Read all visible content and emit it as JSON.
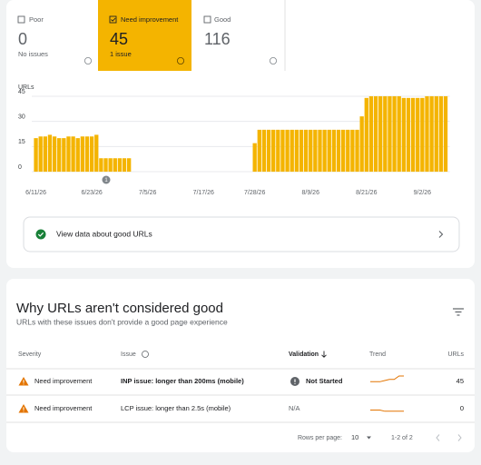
{
  "tabs": [
    {
      "label": "Poor",
      "count": 0,
      "note": "No issues"
    },
    {
      "label": "Need improvement",
      "count": 45,
      "note": "1 issue"
    },
    {
      "label": "Good",
      "count": 116
    }
  ],
  "chart_data": {
    "type": "bar",
    "y_label": "URLs",
    "color": "#f4b400",
    "categories": [
      "6/11/26",
      null,
      null,
      null,
      null,
      null,
      null,
      null,
      null,
      null,
      null,
      null,
      "6/23/26",
      null,
      null,
      null,
      null,
      null,
      null,
      null,
      null,
      null,
      null,
      null,
      "7/5/26",
      null,
      null,
      null,
      null,
      null,
      null,
      null,
      null,
      null,
      null,
      null,
      "7/17/26",
      null,
      null,
      null,
      null,
      null,
      null,
      null,
      null,
      null,
      null,
      "7/28/26",
      null,
      null,
      null,
      null,
      null,
      null,
      null,
      null,
      null,
      null,
      null,
      "8/9/26",
      null,
      null,
      null,
      null,
      null,
      null,
      null,
      null,
      null,
      null,
      null,
      "8/21/26",
      null,
      null,
      null,
      null,
      null,
      null,
      null,
      null,
      null,
      null,
      null,
      "9/2/26",
      null,
      null,
      null,
      null,
      null
    ],
    "values": [
      20,
      21,
      21,
      22,
      21,
      20,
      20,
      21,
      21,
      20,
      21,
      21,
      21,
      22,
      8,
      8,
      8,
      8,
      8,
      8,
      8,
      0,
      0,
      0,
      0,
      0,
      0,
      0,
      0,
      0,
      0,
      0,
      0,
      0,
      0,
      0,
      0,
      0,
      0,
      0,
      0,
      0,
      0,
      0,
      0,
      0,
      0,
      17,
      25,
      25,
      25,
      25,
      25,
      25,
      25,
      25,
      25,
      25,
      25,
      25,
      25,
      25,
      25,
      25,
      25,
      25,
      25,
      25,
      25,
      25,
      33,
      44,
      45,
      45,
      45,
      45,
      45,
      45,
      45,
      44,
      44,
      44,
      44,
      44,
      45,
      45,
      45,
      45,
      45
    ],
    "ylim": [
      0,
      45
    ],
    "yticks": [
      0,
      15,
      30,
      45
    ],
    "grid": true,
    "annotations": [
      "1"
    ]
  },
  "link": "View data about good URLs",
  "issues_panel": {
    "title": "Why URLs aren't considered good",
    "subtitle": "URLs with these issues don't provide a good page experience",
    "columns": [
      "Severity",
      "Issue",
      "Validation",
      "Trend",
      "URLs"
    ],
    "rows": [
      {
        "severity": "Need improvement",
        "issue": "INP issue: longer than 200ms (mobile)",
        "validation": "Not Started",
        "trend": [
          3,
          3,
          3,
          4,
          5,
          5,
          8,
          8
        ],
        "urls": 45
      },
      {
        "severity": "Need improvement",
        "issue": "LCP issue: longer than 2.5s (mobile)",
        "validation": "N/A",
        "trend": [
          2,
          2,
          2,
          1,
          1,
          1,
          1,
          1
        ],
        "urls": 0
      }
    ],
    "footer": {
      "rows_per_page_label": "Rows per page:",
      "rows_per_page": 10,
      "range": "1-2 of 2"
    }
  }
}
